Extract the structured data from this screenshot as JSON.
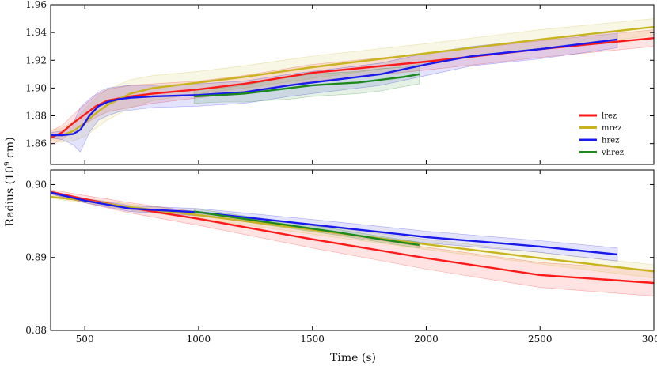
{
  "chart_data": {
    "type": "line",
    "xlabel": "Time (s)",
    "ylabel": "Radius (10",
    "ylabel_sup": "9",
    "ylabel_unit": " cm)",
    "xlim": [
      350,
      3000
    ],
    "xticks": [
      500,
      1000,
      1500,
      2000,
      2500,
      3000
    ],
    "xtick_labels": [
      "500",
      "1000",
      "1500",
      "2000",
      "2500",
      "3000"
    ],
    "colors": {
      "lrez": "#ff1a1a",
      "mrez": "#c8b41e",
      "hrez": "#1a1aee",
      "vhrez": "#1e8a1e"
    },
    "legend": {
      "placement": "right",
      "entries": [
        {
          "name": "lrez",
          "color": "#ff1a1a"
        },
        {
          "name": "mrez",
          "color": "#c8b41e"
        },
        {
          "name": "hrez",
          "color": "#1a1aee"
        },
        {
          "name": "vhrez",
          "color": "#1e8a1e"
        }
      ]
    },
    "panels": [
      {
        "name": "top",
        "ylim": [
          1.845,
          1.96
        ],
        "yticks": [
          1.86,
          1.88,
          1.9,
          1.92,
          1.94,
          1.96
        ],
        "ytick_labels": [
          "1.86",
          "1.88",
          "1.90",
          "1.92",
          "1.94",
          "1.96"
        ],
        "series": [
          {
            "name": "lrez",
            "color": "#ff1a1a",
            "x": [
              350,
              400,
              450,
              500,
              550,
              600,
              700,
              800,
              1000,
              1200,
              1500,
              2000,
              2500,
              3000
            ],
            "y": [
              1.864,
              1.868,
              1.875,
              1.881,
              1.887,
              1.891,
              1.894,
              1.896,
              1.899,
              1.903,
              1.911,
              1.919,
              1.928,
              1.936
            ],
            "band": [
              0.005,
              0.005,
              0.006,
              0.007,
              0.008,
              0.008,
              0.008,
              0.007,
              0.006,
              0.006,
              0.006,
              0.006,
              0.006,
              0.006
            ]
          },
          {
            "name": "mrez",
            "color": "#c8b41e",
            "x": [
              350,
              400,
              450,
              500,
              550,
              600,
              700,
              800,
              1000,
              1200,
              1500,
              2000,
              2500,
              3000
            ],
            "y": [
              1.866,
              1.866,
              1.869,
              1.875,
              1.882,
              1.888,
              1.896,
              1.9,
              1.904,
              1.908,
              1.915,
              1.925,
              1.935,
              1.944
            ],
            "band": [
              0.004,
              0.005,
              0.007,
              0.01,
              0.011,
              0.011,
              0.01,
              0.009,
              0.008,
              0.008,
              0.008,
              0.007,
              0.007,
              0.006
            ]
          },
          {
            "name": "hrez",
            "color": "#1a1aee",
            "x": [
              350,
              400,
              450,
              480,
              520,
              560,
              600,
              650,
              700,
              800,
              1000,
              1200,
              1400,
              1600,
              1800,
              2000,
              2200,
              2500,
              2840
            ],
            "y": [
              1.866,
              1.866,
              1.867,
              1.87,
              1.88,
              1.887,
              1.89,
              1.892,
              1.893,
              1.894,
              1.895,
              1.897,
              1.902,
              1.906,
              1.91,
              1.917,
              1.923,
              1.928,
              1.935
            ],
            "band": [
              0.002,
              0.003,
              0.008,
              0.016,
              0.012,
              0.01,
              0.01,
              0.009,
              0.009,
              0.008,
              0.008,
              0.008,
              0.008,
              0.008,
              0.008,
              0.008,
              0.007,
              0.007,
              0.006
            ]
          },
          {
            "name": "vhrez",
            "color": "#1e8a1e",
            "x": [
              980,
              1100,
              1200,
              1300,
              1400,
              1500,
              1600,
              1700,
              1800,
              1900,
              1970
            ],
            "y": [
              1.894,
              1.895,
              1.896,
              1.898,
              1.9,
              1.902,
              1.903,
              1.904,
              1.906,
              1.908,
              1.91
            ],
            "band": [
              0.005,
              0.005,
              0.006,
              0.007,
              0.008,
              0.008,
              0.008,
              0.008,
              0.008,
              0.007,
              0.007
            ]
          }
        ]
      },
      {
        "name": "bottom",
        "ylim": [
          0.88,
          0.902
        ],
        "yticks": [
          0.88,
          0.89,
          0.9
        ],
        "ytick_labels": [
          "0.88",
          "0.89",
          "0.90"
        ],
        "series": [
          {
            "name": "lrez",
            "color": "#ff1a1a",
            "x": [
              350,
              500,
              700,
              1000,
              1500,
              2000,
              2500,
              3000
            ],
            "y": [
              0.899,
              0.898,
              0.8968,
              0.8953,
              0.8925,
              0.8899,
              0.8876,
              0.8865
            ],
            "band": [
              0.0003,
              0.0005,
              0.0007,
              0.0009,
              0.0012,
              0.0015,
              0.0017,
              0.0018
            ]
          },
          {
            "name": "mrez",
            "color": "#c8b41e",
            "x": [
              350,
              500,
              700,
              1000,
              1500,
              2000,
              2500,
              3000
            ],
            "y": [
              0.8983,
              0.8978,
              0.8969,
              0.8958,
              0.8938,
              0.8918,
              0.8899,
              0.8881
            ],
            "band": [
              0.0002,
              0.0003,
              0.0004,
              0.0005,
              0.0006,
              0.0007,
              0.0008,
              0.0009
            ]
          },
          {
            "name": "hrez",
            "color": "#1a1aee",
            "x": [
              350,
              500,
              700,
              1000,
              1500,
              2000,
              2500,
              2840
            ],
            "y": [
              0.8989,
              0.8978,
              0.8967,
              0.8962,
              0.8945,
              0.8928,
              0.8915,
              0.8904
            ],
            "band": [
              0.0002,
              0.0003,
              0.0004,
              0.0005,
              0.0007,
              0.0008,
              0.0008,
              0.0009
            ]
          },
          {
            "name": "vhrez",
            "color": "#1e8a1e",
            "x": [
              980,
              1200,
              1400,
              1600,
              1800,
              1970
            ],
            "y": [
              0.8963,
              0.8953,
              0.8944,
              0.8935,
              0.8925,
              0.8917
            ],
            "band": [
              0.0004,
              0.0004,
              0.0004,
              0.0004,
              0.0004,
              0.0004
            ]
          }
        ]
      }
    ]
  }
}
